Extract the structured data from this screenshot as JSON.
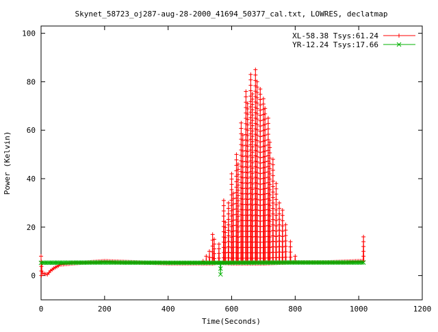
{
  "chart_data": {
    "type": "line",
    "title": "Skynet_58723_oj287-aug-28-2000_41694_50377_cal.txt, LOWRES, declatmap",
    "xlabel": "Time(Seconds)",
    "ylabel": "Power (Kelvin)",
    "xlim": [
      0,
      1200
    ],
    "ylim": [
      -10,
      103
    ],
    "x_ticks": [
      0,
      200,
      400,
      600,
      800,
      1000,
      1200
    ],
    "y_ticks": [
      0,
      20,
      40,
      60,
      80,
      100
    ],
    "grid": false,
    "legend_position": "top-right",
    "series": [
      {
        "name": "XL-58.38 Tsys:61.24",
        "color": "#ff0000",
        "marker": "plus",
        "baseline": [
          [
            0,
            8
          ],
          [
            3,
            1
          ],
          [
            20,
            0.5
          ],
          [
            30,
            2
          ],
          [
            40,
            3
          ],
          [
            60,
            4.5
          ],
          [
            100,
            5
          ],
          [
            150,
            5.5
          ],
          [
            200,
            6
          ],
          [
            300,
            5.5
          ],
          [
            400,
            5
          ],
          [
            500,
            5
          ],
          [
            540,
            5
          ],
          [
            560,
            5.3
          ],
          [
            600,
            5
          ],
          [
            700,
            5
          ],
          [
            800,
            5.5
          ],
          [
            900,
            5.5
          ],
          [
            1000,
            6
          ],
          [
            1010,
            6
          ]
        ],
        "peaks": [
          [
            510,
            6
          ],
          [
            520,
            8
          ],
          [
            530,
            10
          ],
          [
            540,
            17
          ],
          [
            545,
            15
          ],
          [
            560,
            13
          ],
          [
            575,
            31
          ],
          [
            580,
            22
          ],
          [
            590,
            30
          ],
          [
            600,
            42
          ],
          [
            605,
            34
          ],
          [
            615,
            50
          ],
          [
            620,
            46
          ],
          [
            630,
            63
          ],
          [
            635,
            58
          ],
          [
            645,
            76
          ],
          [
            650,
            71
          ],
          [
            660,
            83
          ],
          [
            665,
            75
          ],
          [
            675,
            85
          ],
          [
            680,
            80
          ],
          [
            690,
            77
          ],
          [
            700,
            73
          ],
          [
            705,
            69
          ],
          [
            715,
            65
          ],
          [
            720,
            55
          ],
          [
            730,
            48
          ],
          [
            740,
            38
          ],
          [
            750,
            30
          ],
          [
            760,
            27
          ],
          [
            770,
            21
          ],
          [
            785,
            14
          ],
          [
            800,
            8
          ],
          [
            1015,
            16
          ]
        ],
        "dips": [
          [
            1,
            0
          ]
        ]
      },
      {
        "name": "YR-12.24 Tsys:17.66",
        "color": "#00b000",
        "marker": "x",
        "baseline": [
          [
            0,
            5.3
          ],
          [
            200,
            5.4
          ],
          [
            400,
            5.3
          ],
          [
            600,
            5.3
          ],
          [
            800,
            5.4
          ],
          [
            1000,
            5.4
          ],
          [
            1015,
            5.4
          ]
        ],
        "peaks": [],
        "dips": [
          [
            565,
            0.5
          ]
        ]
      }
    ]
  }
}
